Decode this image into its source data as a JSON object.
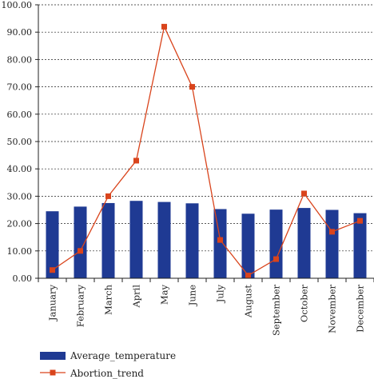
{
  "chart_data": {
    "type": "bar",
    "categories": [
      "January",
      "February",
      "March",
      "April",
      "May",
      "June",
      "July",
      "August",
      "September",
      "October",
      "November",
      "December"
    ],
    "series": [
      {
        "name": "Average_temperature",
        "type": "bar",
        "color": "#1f3a93",
        "values": [
          24.5,
          26.2,
          27.5,
          28.3,
          27.9,
          27.4,
          25.3,
          23.6,
          25.1,
          25.7,
          25.0,
          23.8
        ]
      },
      {
        "name": "Abortion_trend",
        "type": "line",
        "color": "#d9441c",
        "values": [
          3,
          10,
          30,
          43,
          92,
          70,
          14,
          1,
          7,
          31,
          17,
          21
        ]
      }
    ],
    "title": "",
    "xlabel": "",
    "ylabel": "",
    "ylim": [
      0,
      100
    ],
    "yticks": [
      "0.00",
      "10.00",
      "20.00",
      "30.00",
      "40.00",
      "50.00",
      "60.00",
      "70.00",
      "80.00",
      "90.00",
      "100.00"
    ],
    "grid": "horizontal dashed",
    "legend": "bottom"
  }
}
